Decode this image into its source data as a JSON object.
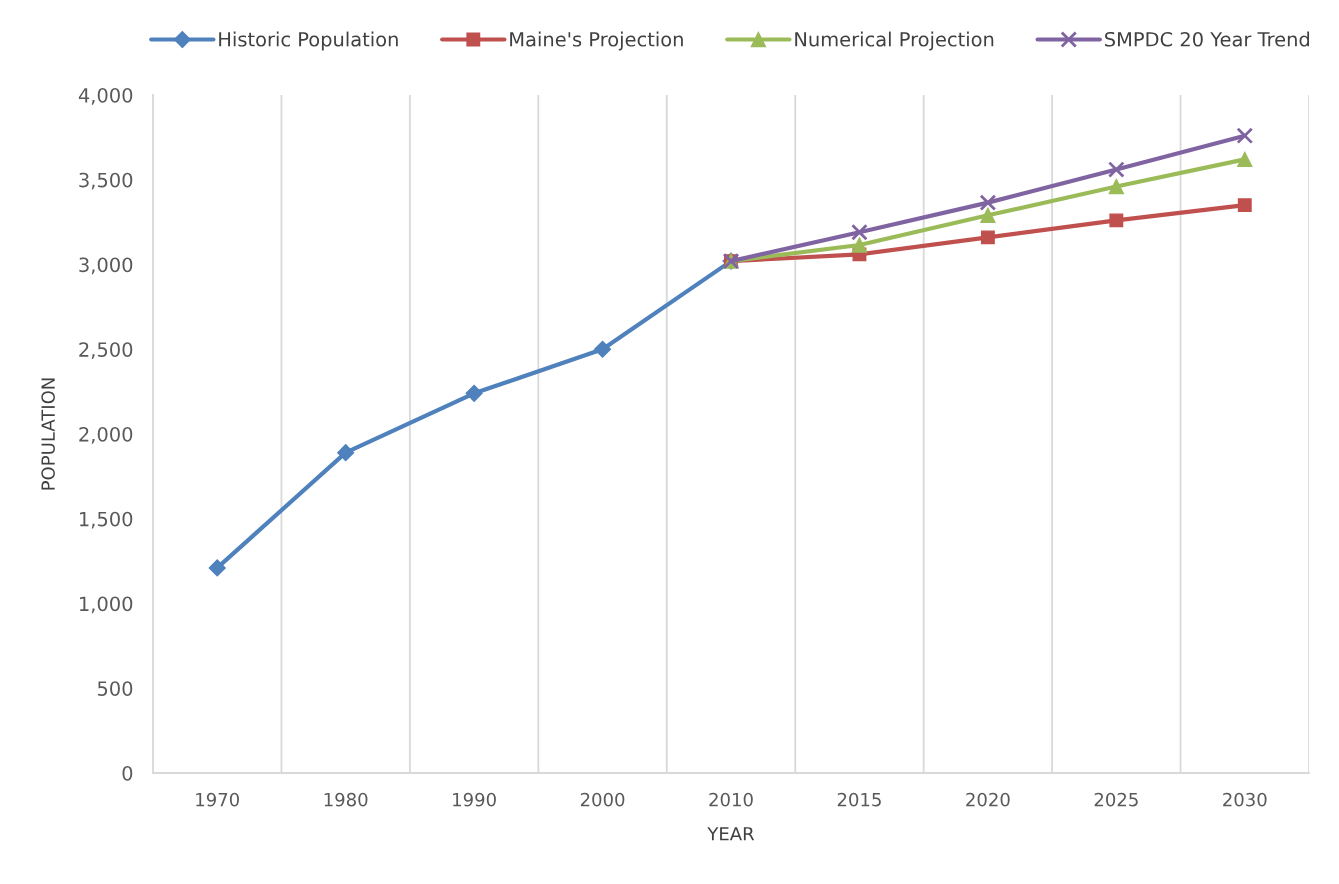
{
  "chart_data": {
    "type": "line",
    "xlabel": "YEAR",
    "ylabel": "POPULATION",
    "categories": [
      "1970",
      "1980",
      "1990",
      "2000",
      "2010",
      "2015",
      "2020",
      "2025",
      "2030"
    ],
    "ylim": [
      0,
      4000
    ],
    "yticks": [
      0,
      500,
      {
        "value": 1000,
        "label": "1,000"
      },
      {
        "value": 1500,
        "label": "1,500"
      },
      {
        "value": 2000,
        "label": "2,000"
      },
      {
        "value": 2500,
        "label": "2,500"
      },
      {
        "value": 3000,
        "label": "3,000"
      },
      {
        "value": 3500,
        "label": "3,500"
      },
      {
        "value": 4000,
        "label": "4,000"
      }
    ],
    "grid": "x",
    "legend": "top",
    "line_style": "solid",
    "series": [
      {
        "name": "Historic Population",
        "color": "#4f81bd",
        "marker": "diamond",
        "values": [
          1210,
          1890,
          2240,
          2500,
          3020,
          null,
          null,
          null,
          null
        ]
      },
      {
        "name": "Maine's Projection",
        "color": "#c0504d",
        "marker": "square",
        "values": [
          null,
          null,
          null,
          null,
          3020,
          3060,
          3160,
          3260,
          3350
        ]
      },
      {
        "name": "Numerical Projection",
        "color": "#9bbb59",
        "marker": "triangle",
        "values": [
          null,
          null,
          null,
          null,
          3020,
          3115,
          3290,
          3460,
          3620
        ]
      },
      {
        "name": "SMPDC 20 Year Trend",
        "color": "#8064a2",
        "marker": "cross",
        "values": [
          null,
          null,
          null,
          null,
          3020,
          3190,
          3365,
          3560,
          3760
        ]
      }
    ]
  }
}
